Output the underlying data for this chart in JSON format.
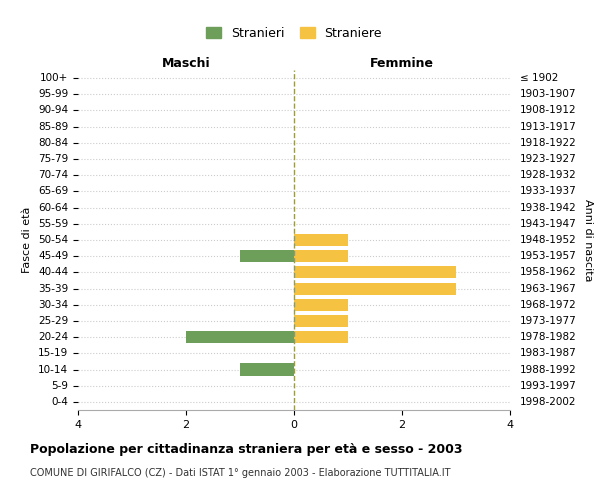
{
  "age_groups": [
    "100+",
    "95-99",
    "90-94",
    "85-89",
    "80-84",
    "75-79",
    "70-74",
    "65-69",
    "60-64",
    "55-59",
    "50-54",
    "45-49",
    "40-44",
    "35-39",
    "30-34",
    "25-29",
    "20-24",
    "15-19",
    "10-14",
    "5-9",
    "0-4"
  ],
  "birth_years": [
    "≤ 1902",
    "1903-1907",
    "1908-1912",
    "1913-1917",
    "1918-1922",
    "1923-1927",
    "1928-1932",
    "1933-1937",
    "1938-1942",
    "1943-1947",
    "1948-1952",
    "1953-1957",
    "1958-1962",
    "1963-1967",
    "1968-1972",
    "1973-1977",
    "1978-1982",
    "1983-1987",
    "1988-1992",
    "1993-1997",
    "1998-2002"
  ],
  "maschi": [
    0,
    0,
    0,
    0,
    0,
    0,
    0,
    0,
    0,
    0,
    0,
    1,
    0,
    0,
    0,
    0,
    2,
    0,
    1,
    0,
    0
  ],
  "femmine": [
    0,
    0,
    0,
    0,
    0,
    0,
    0,
    0,
    0,
    0,
    1,
    1,
    3,
    3,
    1,
    1,
    1,
    0,
    0,
    0,
    0
  ],
  "male_color": "#6d9e5a",
  "female_color": "#f5c242",
  "center_line_color": "#999955",
  "grid_color": "#cccccc",
  "background_color": "#ffffff",
  "title": "Popolazione per cittadinanza straniera per età e sesso - 2003",
  "subtitle": "COMUNE DI GIRIFALCO (CZ) - Dati ISTAT 1° gennaio 2003 - Elaborazione TUTTITALIA.IT",
  "xlabel_left": "Maschi",
  "xlabel_right": "Femmine",
  "ylabel_left": "Fasce di età",
  "ylabel_right": "Anni di nascita",
  "legend_male": "Stranieri",
  "legend_female": "Straniere",
  "xlim": 4,
  "bar_height": 0.75
}
